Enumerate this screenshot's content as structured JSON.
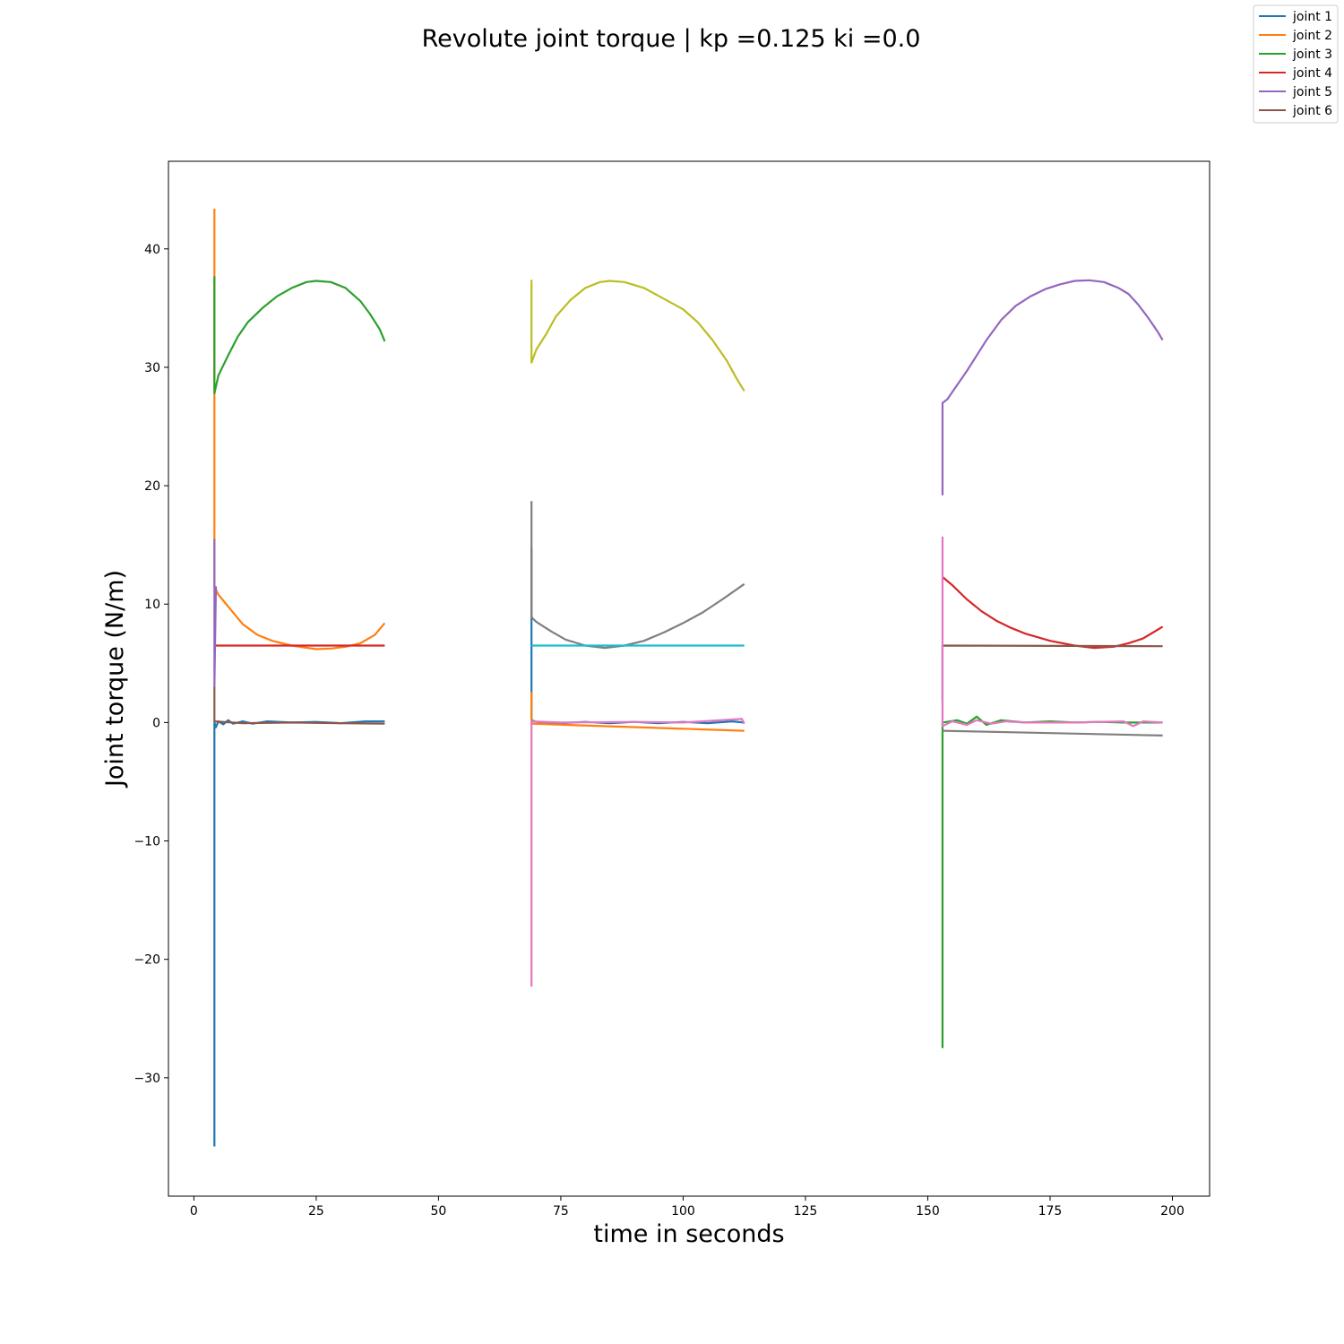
{
  "chart_data": {
    "type": "line",
    "title": "Revolute joint torque | kp =0.125 ki =0.0",
    "xlabel": "time in seconds",
    "ylabel": "Joint torque (N/m)",
    "xlim": [
      -5.2,
      207.6
    ],
    "ylim": [
      -40.0,
      47.4
    ],
    "xticks": [
      0,
      25,
      50,
      75,
      100,
      125,
      150,
      175,
      200
    ],
    "yticks": [
      -30,
      -20,
      -10,
      0,
      10,
      20,
      30,
      40
    ],
    "xtick_labels": [
      "0",
      "25",
      "50",
      "75",
      "100",
      "125",
      "150",
      "175",
      "200"
    ],
    "ytick_labels": [
      "−30",
      "−20",
      "−10",
      "0",
      "10",
      "20",
      "30",
      "40"
    ],
    "grid": false,
    "legend_position": "top-right",
    "legend": [
      {
        "label": "joint 1",
        "color": "#1f77b4"
      },
      {
        "label": "joint 2",
        "color": "#ff7f0e"
      },
      {
        "label": "joint 3",
        "color": "#2ca02c"
      },
      {
        "label": "joint 4",
        "color": "#d62728"
      },
      {
        "label": "joint 5",
        "color": "#9467bd"
      },
      {
        "label": "joint 6",
        "color": "#8c564b"
      }
    ],
    "series": [
      {
        "color": "#1f77b4",
        "points": [
          [
            4.2,
            -35.8
          ],
          [
            4.2,
            0.0
          ],
          [
            4.5,
            -0.4
          ],
          [
            5,
            0.1
          ],
          [
            6,
            -0.15
          ],
          [
            7,
            0.2
          ],
          [
            8,
            -0.1
          ],
          [
            10,
            0.1
          ],
          [
            12,
            -0.1
          ],
          [
            15,
            0.1
          ],
          [
            20,
            0.0
          ],
          [
            25,
            0.05
          ],
          [
            30,
            -0.05
          ],
          [
            35,
            0.1
          ],
          [
            39,
            0.1
          ]
        ]
      },
      {
        "color": "#ff7f0e",
        "points": [
          [
            4.2,
            43.4
          ],
          [
            4.2,
            11.5
          ],
          [
            5,
            10.8
          ],
          [
            7,
            9.8
          ],
          [
            10,
            8.3
          ],
          [
            13,
            7.4
          ],
          [
            16,
            6.9
          ],
          [
            20,
            6.5
          ],
          [
            25,
            6.2
          ],
          [
            28,
            6.25
          ],
          [
            31,
            6.4
          ],
          [
            34,
            6.7
          ],
          [
            37,
            7.4
          ],
          [
            39,
            8.4
          ]
        ]
      },
      {
        "color": "#2ca02c",
        "points": [
          [
            4.2,
            37.7
          ],
          [
            4.2,
            27.8
          ],
          [
            5,
            29.3
          ],
          [
            7,
            31.0
          ],
          [
            9,
            32.6
          ],
          [
            11,
            33.8
          ],
          [
            14,
            35.0
          ],
          [
            17,
            36.0
          ],
          [
            20,
            36.7
          ],
          [
            23,
            37.2
          ],
          [
            25,
            37.3
          ],
          [
            28,
            37.2
          ],
          [
            31,
            36.7
          ],
          [
            34,
            35.6
          ],
          [
            36,
            34.5
          ],
          [
            38,
            33.2
          ],
          [
            39,
            32.2
          ]
        ]
      },
      {
        "color": "#d62728",
        "points": [
          [
            4.2,
            6.5
          ],
          [
            39,
            6.5
          ]
        ]
      },
      {
        "color": "#9467bd",
        "points": [
          [
            4.2,
            15.5
          ],
          [
            4.2,
            3.0
          ],
          [
            4.5,
            11.5
          ]
        ]
      },
      {
        "color": "#8c564b",
        "points": [
          [
            4.2,
            3.0
          ],
          [
            4.2,
            0.1
          ],
          [
            10,
            -0.05
          ],
          [
            20,
            0.0
          ],
          [
            30,
            -0.05
          ],
          [
            39,
            -0.1
          ]
        ]
      },
      {
        "color": "#1f77b4",
        "points": [
          [
            69,
            14.8
          ],
          [
            69,
            0.2
          ],
          [
            70,
            0.05
          ],
          [
            75,
            -0.05
          ],
          [
            80,
            0.05
          ],
          [
            85,
            -0.05
          ],
          [
            90,
            0.05
          ],
          [
            95,
            -0.05
          ],
          [
            100,
            0.05
          ],
          [
            105,
            -0.05
          ],
          [
            110,
            0.1
          ],
          [
            112.5,
            0.0
          ]
        ]
      },
      {
        "color": "#ff7f0e",
        "points": [
          [
            69,
            2.6
          ],
          [
            69,
            -0.1
          ],
          [
            112.5,
            -0.7
          ]
        ]
      },
      {
        "color": "#bcbd22",
        "points": [
          [
            69,
            37.4
          ],
          [
            69,
            30.4
          ],
          [
            70,
            31.5
          ],
          [
            72,
            32.8
          ],
          [
            74,
            34.3
          ],
          [
            77,
            35.7
          ],
          [
            80,
            36.7
          ],
          [
            83,
            37.2
          ],
          [
            85,
            37.3
          ],
          [
            88,
            37.2
          ],
          [
            92,
            36.7
          ],
          [
            96,
            35.8
          ],
          [
            100,
            34.9
          ],
          [
            103,
            33.8
          ],
          [
            106,
            32.3
          ],
          [
            109,
            30.5
          ],
          [
            111,
            29.0
          ],
          [
            112.5,
            28.0
          ]
        ]
      },
      {
        "color": "#7f7f7f",
        "points": [
          [
            69,
            18.7
          ],
          [
            69,
            8.9
          ],
          [
            70,
            8.5
          ],
          [
            73,
            7.7
          ],
          [
            76,
            7.0
          ],
          [
            80,
            6.5
          ],
          [
            84,
            6.3
          ],
          [
            88,
            6.5
          ],
          [
            92,
            6.9
          ],
          [
            96,
            7.6
          ],
          [
            100,
            8.4
          ],
          [
            104,
            9.3
          ],
          [
            108,
            10.4
          ],
          [
            112.5,
            11.7
          ]
        ]
      },
      {
        "color": "#17becf",
        "points": [
          [
            69,
            6.5
          ],
          [
            112.5,
            6.5
          ]
        ]
      },
      {
        "color": "#e377c2",
        "points": [
          [
            69,
            -22.3
          ],
          [
            69,
            0.1
          ],
          [
            75,
            0.0
          ],
          [
            90,
            0.05
          ],
          [
            100,
            0.0
          ],
          [
            112,
            0.3
          ],
          [
            112.5,
            -0.1
          ]
        ]
      },
      {
        "color": "#2ca02c",
        "points": [
          [
            153,
            -27.5
          ],
          [
            153,
            0.0
          ],
          [
            156,
            0.2
          ],
          [
            158,
            -0.1
          ],
          [
            160,
            0.5
          ],
          [
            162,
            -0.2
          ],
          [
            165,
            0.2
          ],
          [
            170,
            0.0
          ],
          [
            175,
            0.1
          ],
          [
            180,
            0.0
          ],
          [
            185,
            0.05
          ],
          [
            190,
            0.0
          ],
          [
            195,
            0.0
          ],
          [
            198,
            0.0
          ]
        ]
      },
      {
        "color": "#9467bd",
        "points": [
          [
            153,
            19.2
          ],
          [
            153,
            27.0
          ],
          [
            154,
            27.3
          ],
          [
            156,
            28.5
          ],
          [
            158,
            29.7
          ],
          [
            160,
            31.0
          ],
          [
            162,
            32.3
          ],
          [
            165,
            34.0
          ],
          [
            168,
            35.2
          ],
          [
            171,
            36.0
          ],
          [
            174,
            36.6
          ],
          [
            177,
            37.0
          ],
          [
            180,
            37.3
          ],
          [
            183,
            37.35
          ],
          [
            186,
            37.2
          ],
          [
            189,
            36.7
          ],
          [
            191,
            36.2
          ],
          [
            193,
            35.3
          ],
          [
            195,
            34.2
          ],
          [
            197,
            33.0
          ],
          [
            198,
            32.3
          ]
        ]
      },
      {
        "color": "#d62728",
        "points": [
          [
            153,
            12.3
          ],
          [
            155,
            11.6
          ],
          [
            158,
            10.4
          ],
          [
            161,
            9.4
          ],
          [
            164,
            8.6
          ],
          [
            167,
            8.0
          ],
          [
            170,
            7.5
          ],
          [
            175,
            6.9
          ],
          [
            180,
            6.5
          ],
          [
            184,
            6.3
          ],
          [
            188,
            6.4
          ],
          [
            191,
            6.7
          ],
          [
            194,
            7.1
          ],
          [
            196,
            7.6
          ],
          [
            198,
            8.1
          ]
        ]
      },
      {
        "color": "#8c564b",
        "points": [
          [
            153,
            1.8
          ],
          [
            153,
            6.5
          ],
          [
            198,
            6.45
          ]
        ]
      },
      {
        "color": "#e377c2",
        "points": [
          [
            153,
            15.7
          ],
          [
            153,
            -0.3
          ],
          [
            155,
            0.1
          ],
          [
            158,
            -0.2
          ],
          [
            160,
            0.2
          ],
          [
            163,
            -0.1
          ],
          [
            166,
            0.1
          ],
          [
            170,
            0.0
          ],
          [
            180,
            0.0
          ],
          [
            190,
            0.1
          ],
          [
            192,
            -0.3
          ],
          [
            194,
            0.1
          ],
          [
            198,
            0.0
          ]
        ]
      },
      {
        "color": "#7f7f7f",
        "points": [
          [
            153,
            -0.7
          ],
          [
            198,
            -1.1
          ]
        ]
      }
    ]
  }
}
